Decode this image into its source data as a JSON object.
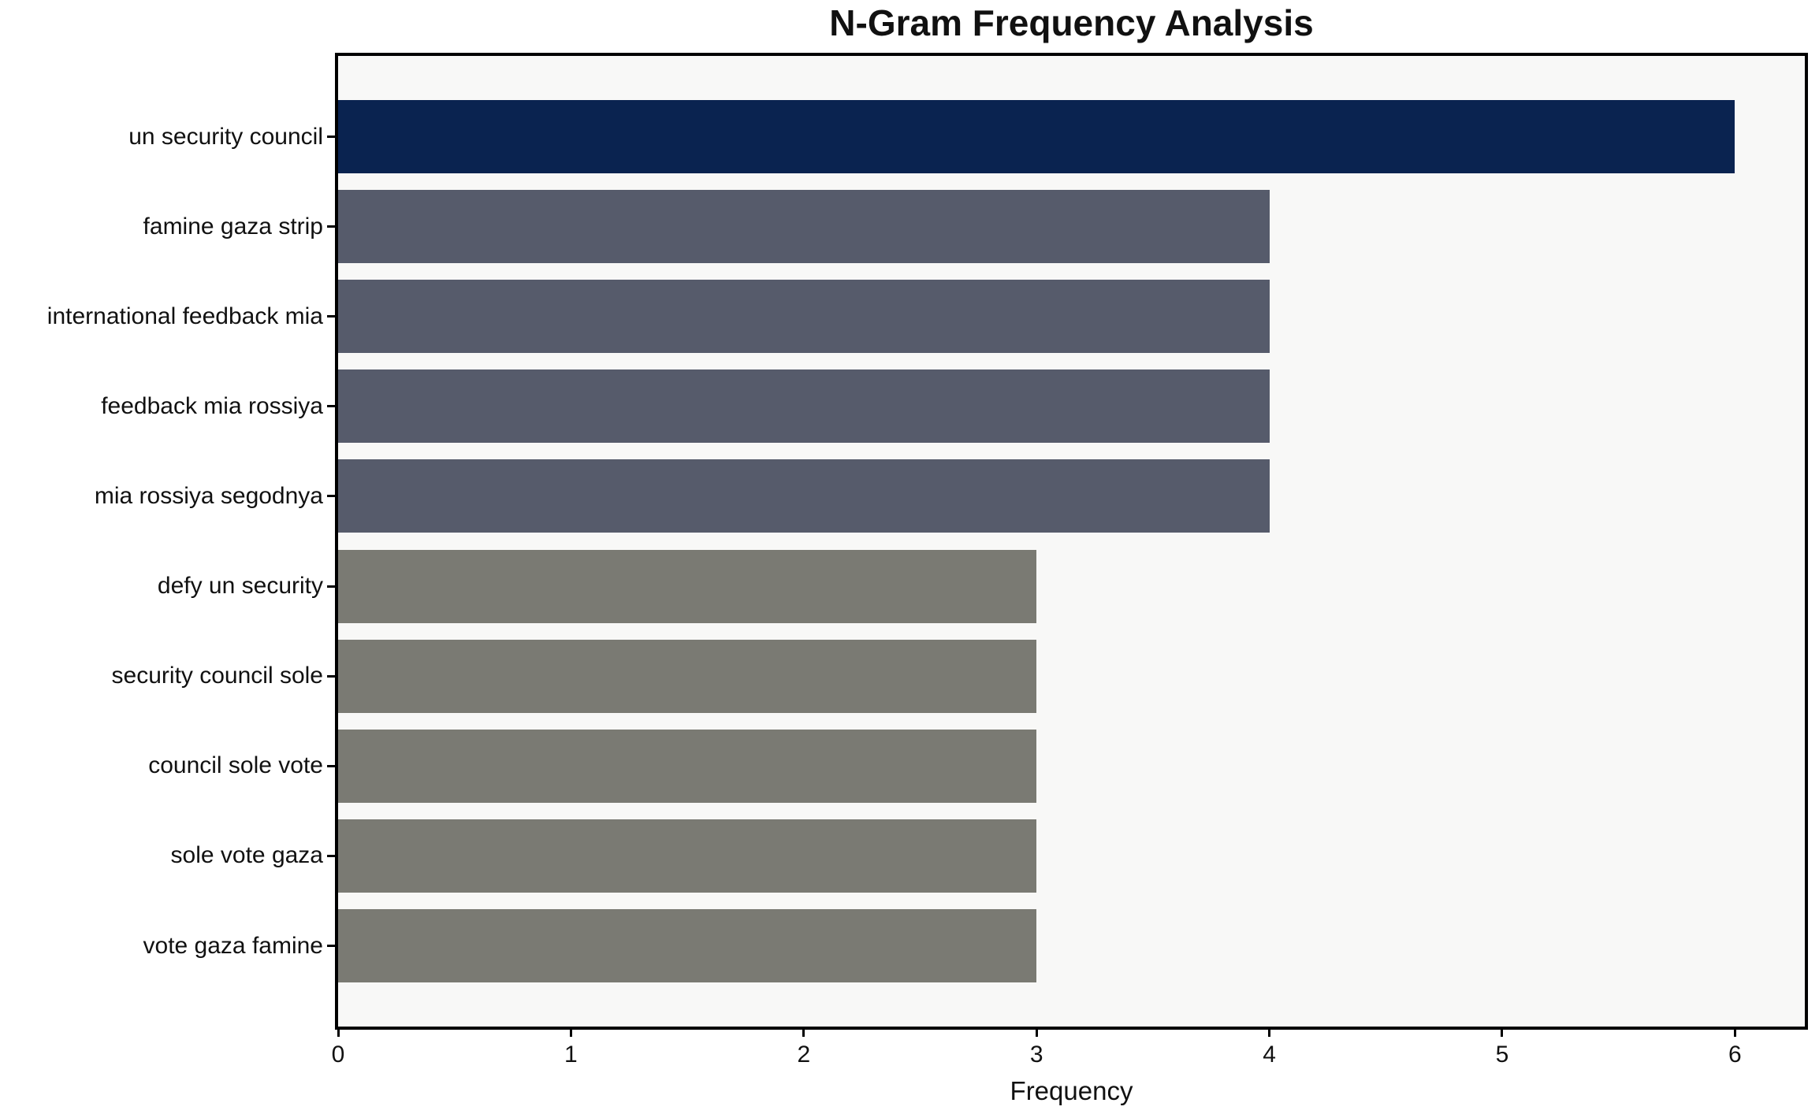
{
  "chart_data": {
    "type": "bar",
    "orientation": "horizontal",
    "title": "N-Gram Frequency Analysis",
    "xlabel": "Frequency",
    "ylabel": "",
    "categories": [
      "un security council",
      "famine gaza strip",
      "international feedback mia",
      "feedback mia rossiya",
      "mia rossiya segodnya",
      "defy un security",
      "security council sole",
      "council sole vote",
      "sole vote gaza",
      "vote gaza famine"
    ],
    "values": [
      6,
      4,
      4,
      4,
      4,
      3,
      3,
      3,
      3,
      3
    ],
    "bar_colors": [
      "#0a2350",
      "#565b6b",
      "#565b6b",
      "#565b6b",
      "#565b6b",
      "#7a7a73",
      "#7a7a73",
      "#7a7a73",
      "#7a7a73",
      "#7a7a73"
    ],
    "x_ticks": [
      0,
      1,
      2,
      3,
      4,
      5,
      6
    ],
    "xlim": [
      0,
      6.3
    ],
    "grid": false,
    "legend": null,
    "plot_background": "#f8f8f7",
    "spine_color": "#000000",
    "text_color": "#111111"
  }
}
